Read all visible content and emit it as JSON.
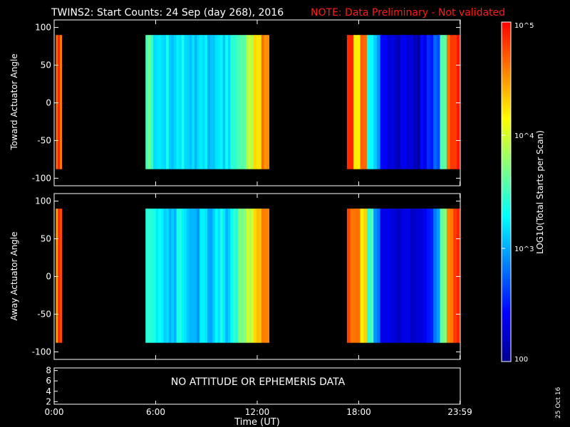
{
  "header": {
    "title": "TWINS2: Start Counts: 24 Sep (day 268), 2016",
    "note": "NOTE: Data Preliminary - Not validated",
    "note_color": "#ff1a1a"
  },
  "footer": {
    "xlabel": "Time (UT)",
    "date_stamp": "25 Oct 16"
  },
  "colorbar": {
    "label": "LOG10(Total Starts per Scan)",
    "ticks": [
      {
        "value": 100,
        "label": "100"
      },
      {
        "value": 1000,
        "label": "10^3"
      },
      {
        "value": 10000,
        "label": "10^4"
      },
      {
        "value": 100000,
        "label": "10^5"
      }
    ],
    "range": [
      100,
      100000
    ],
    "scale": "log",
    "colormap": [
      "#00008f",
      "#0000ff",
      "#0080ff",
      "#00ffff",
      "#80ff80",
      "#ffff00",
      "#ff8000",
      "#ff0000"
    ]
  },
  "attitude_panel": {
    "message": "NO ATTITUDE OR EPHEMERIS DATA",
    "yticks": [
      "2",
      "4",
      "6",
      "8"
    ],
    "ylim": [
      1.5,
      8.5
    ]
  },
  "chart_data": [
    {
      "type": "heatmap",
      "ylabel": "Toward Actuator Angle",
      "ylim": [
        -110,
        110
      ],
      "yticks": [
        -100,
        -50,
        0,
        50,
        100
      ],
      "angle_range": [
        -88,
        90
      ],
      "xlim": [
        0,
        24
      ],
      "xticks": [
        {
          "value": 0,
          "label": "0:00"
        },
        {
          "value": 6,
          "label": "6:00"
        },
        {
          "value": 12,
          "label": "12:00"
        },
        {
          "value": 18,
          "label": "18:00"
        },
        {
          "value": 23.98,
          "label": "23:59"
        }
      ],
      "segments": [
        {
          "start": 0.1,
          "end": 0.45,
          "log_counts": [
            4.55,
            4.8,
            4.7
          ]
        },
        {
          "start": 5.4,
          "end": 12.7,
          "log_counts": [
            3.55,
            3.2,
            3.25,
            3.15,
            3.3,
            3.2,
            3.1,
            3.25,
            3.05,
            3.3,
            3.2,
            3.4,
            3.6,
            3.9,
            4.3,
            4.6
          ]
        },
        {
          "start": 17.3,
          "end": 23.98,
          "log_counts": [
            4.8,
            4.1,
            4.6,
            3.3,
            3.0,
            2.5,
            2.3,
            2.2,
            2.25,
            2.3,
            2.2,
            2.35,
            2.5,
            2.8,
            3.5,
            4.7,
            4.9
          ]
        }
      ]
    },
    {
      "type": "heatmap",
      "ylabel": "Away Actuator Angle",
      "ylim": [
        -110,
        110
      ],
      "yticks": [
        -100,
        -50,
        0,
        50,
        100
      ],
      "angle_range": [
        -88,
        90
      ],
      "xlim": [
        0,
        24
      ],
      "xticks": [
        {
          "value": 0,
          "label": "0:00"
        },
        {
          "value": 6,
          "label": "6:00"
        },
        {
          "value": 12,
          "label": "12:00"
        },
        {
          "value": 18,
          "label": "18:00"
        },
        {
          "value": 23.98,
          "label": "23:59"
        }
      ],
      "segments": [
        {
          "start": 0.1,
          "end": 0.45,
          "log_counts": [
            4.55,
            4.8,
            4.7
          ]
        },
        {
          "start": 5.4,
          "end": 12.7,
          "log_counts": [
            3.5,
            3.3,
            3.2,
            3.1,
            3.3,
            3.15,
            3.05,
            3.2,
            3.0,
            3.3,
            3.15,
            3.4,
            3.65,
            4.0,
            4.35,
            4.6
          ]
        },
        {
          "start": 17.3,
          "end": 23.98,
          "log_counts": [
            4.7,
            4.6,
            4.3,
            3.5,
            2.9,
            2.4,
            2.3,
            2.2,
            2.25,
            2.3,
            2.2,
            2.35,
            2.5,
            2.9,
            3.6,
            4.6,
            4.9
          ]
        }
      ]
    }
  ]
}
